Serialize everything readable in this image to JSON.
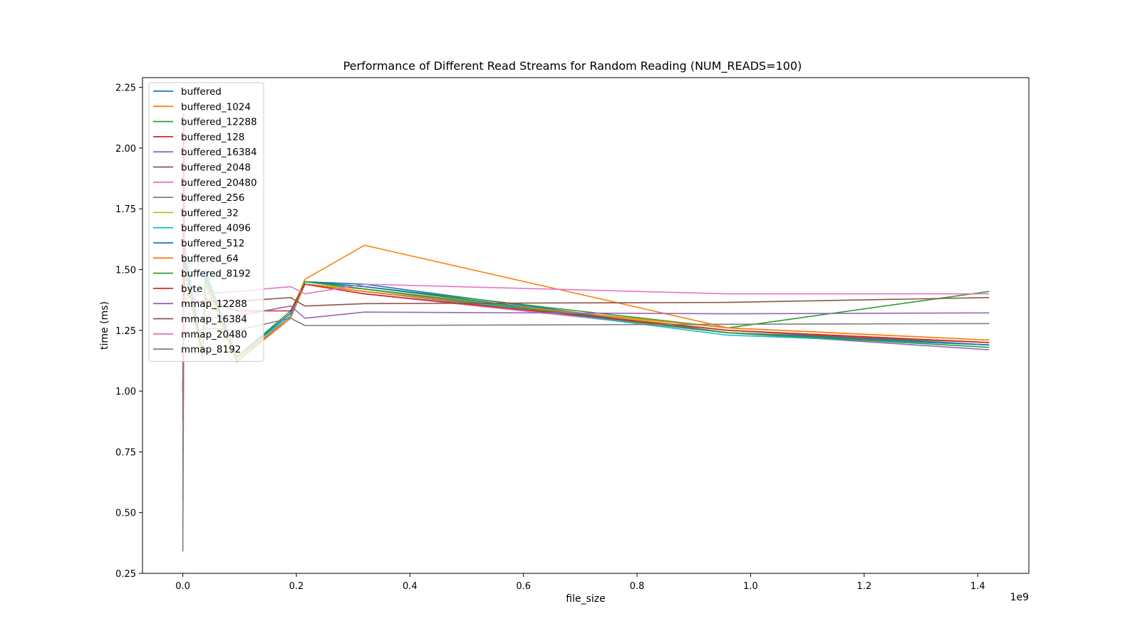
{
  "chart_data": {
    "type": "line",
    "title": "Performance of Different Read Streams for Random Reading (NUM_READS=100)",
    "xlabel": "file_size",
    "ylabel": "time (ms)",
    "x_offset_label": "1e9",
    "xlim": [
      -0.071,
      1.49
    ],
    "ylim": [
      0.25,
      2.29
    ],
    "xticks": [
      0.0,
      0.2,
      0.4,
      0.6,
      0.8,
      1.0,
      1.2,
      1.4
    ],
    "xtick_labels": [
      "0.0",
      "0.2",
      "0.4",
      "0.6",
      "0.8",
      "1.0",
      "1.2",
      "1.4"
    ],
    "yticks": [
      0.25,
      0.5,
      0.75,
      1.0,
      1.25,
      1.5,
      1.75,
      2.0,
      2.25
    ],
    "ytick_labels": [
      "0.25",
      "0.50",
      "0.75",
      "1.00",
      "1.25",
      "1.50",
      "1.75",
      "2.00",
      "2.25"
    ],
    "legend_position": "upper-left",
    "grid": false,
    "x": [
      0.0,
      0.0015,
      0.003,
      0.035,
      0.04,
      0.095,
      0.19,
      0.215,
      0.32,
      0.96,
      1.42
    ],
    "series": [
      {
        "name": "buffered",
        "color": "#1f77b4",
        "values": [
          1.0,
          1.3,
          1.55,
          1.15,
          1.46,
          1.14,
          1.32,
          1.45,
          1.44,
          1.24,
          1.2
        ]
      },
      {
        "name": "buffered_1024",
        "color": "#ff7f0e",
        "values": [
          1.0,
          1.28,
          1.5,
          1.14,
          1.44,
          1.12,
          1.31,
          1.46,
          1.6,
          1.26,
          1.21
        ]
      },
      {
        "name": "buffered_12288",
        "color": "#2ca02c",
        "values": [
          1.0,
          1.3,
          1.52,
          1.14,
          1.46,
          1.13,
          1.31,
          1.45,
          1.43,
          1.26,
          1.41
        ]
      },
      {
        "name": "buffered_128",
        "color": "#d62728",
        "values": [
          1.0,
          1.29,
          1.51,
          1.14,
          1.45,
          1.13,
          1.31,
          1.44,
          1.41,
          1.25,
          1.2
        ]
      },
      {
        "name": "buffered_16384",
        "color": "#9467bd",
        "values": [
          1.0,
          1.28,
          1.5,
          1.14,
          1.44,
          1.13,
          1.3,
          1.44,
          1.4,
          1.24,
          1.17
        ]
      },
      {
        "name": "buffered_2048",
        "color": "#8c564b",
        "values": [
          1.0,
          1.3,
          1.5,
          1.15,
          1.45,
          1.13,
          1.31,
          1.44,
          1.42,
          1.25,
          1.19
        ]
      },
      {
        "name": "buffered_20480",
        "color": "#e377c2",
        "values": [
          1.0,
          1.3,
          1.52,
          1.15,
          1.46,
          1.14,
          1.32,
          1.44,
          1.4,
          1.24,
          1.19
        ]
      },
      {
        "name": "buffered_256",
        "color": "#7f7f7f",
        "values": [
          1.0,
          1.29,
          1.5,
          1.14,
          1.45,
          1.13,
          1.31,
          1.44,
          1.41,
          1.24,
          1.19
        ]
      },
      {
        "name": "buffered_32",
        "color": "#bcbd22",
        "values": [
          1.0,
          1.29,
          1.51,
          1.14,
          1.45,
          1.13,
          1.31,
          1.44,
          1.42,
          1.25,
          1.2
        ]
      },
      {
        "name": "buffered_4096",
        "color": "#17becf",
        "values": [
          1.0,
          1.3,
          1.6,
          1.15,
          1.5,
          1.14,
          1.31,
          1.45,
          1.42,
          1.23,
          1.19
        ]
      },
      {
        "name": "buffered_512",
        "color": "#1f77b4",
        "values": [
          1.0,
          1.3,
          1.56,
          1.15,
          1.48,
          1.14,
          1.32,
          1.45,
          1.43,
          1.24,
          1.19
        ]
      },
      {
        "name": "buffered_64",
        "color": "#ff7f0e",
        "values": [
          1.0,
          1.28,
          1.5,
          1.13,
          1.44,
          1.12,
          1.3,
          1.44,
          1.41,
          1.26,
          1.21
        ]
      },
      {
        "name": "buffered_8192",
        "color": "#2ca02c",
        "values": [
          1.0,
          1.3,
          1.54,
          1.15,
          1.47,
          1.14,
          1.33,
          1.45,
          1.42,
          1.24,
          1.18
        ]
      },
      {
        "name": "byte",
        "color": "#d62728",
        "values": [
          0.88,
          2.14,
          1.4,
          1.36,
          1.38,
          1.33,
          1.33,
          1.44,
          1.4,
          1.25,
          1.2
        ]
      },
      {
        "name": "mmap_12288",
        "color": "#9467bd",
        "values": [
          0.75,
          1.25,
          1.3,
          1.3,
          1.3,
          1.31,
          1.35,
          1.3,
          1.325,
          1.318,
          1.322
        ]
      },
      {
        "name": "mmap_16384",
        "color": "#8c564b",
        "values": [
          0.55,
          1.35,
          1.36,
          1.37,
          1.37,
          1.37,
          1.385,
          1.35,
          1.36,
          1.365,
          1.385
        ]
      },
      {
        "name": "mmap_20480",
        "color": "#e377c2",
        "values": [
          0.45,
          1.36,
          1.38,
          1.4,
          1.4,
          1.41,
          1.43,
          1.4,
          1.44,
          1.4,
          1.4
        ]
      },
      {
        "name": "mmap_8192",
        "color": "#7f7f7f",
        "values": [
          0.34,
          1.2,
          1.24,
          1.25,
          1.26,
          1.25,
          1.3,
          1.27,
          1.27,
          1.275,
          1.278
        ]
      }
    ]
  }
}
